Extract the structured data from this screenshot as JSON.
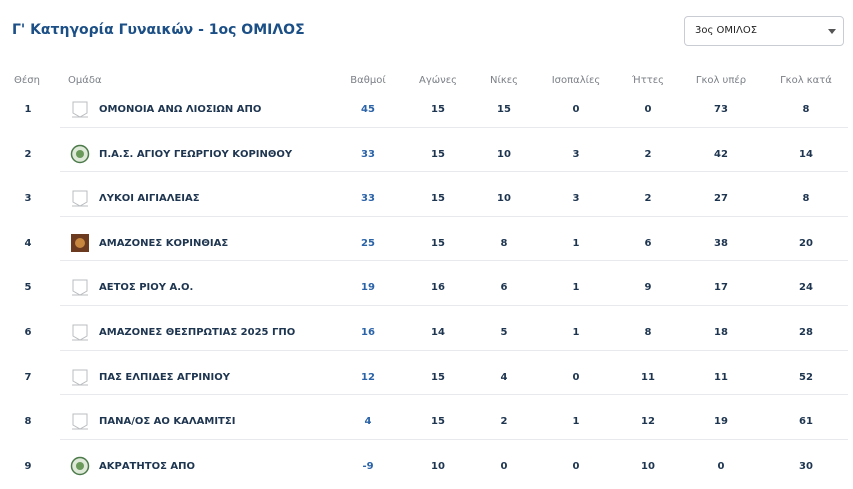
{
  "header": {
    "title": "Γ' Κατηγορία Γυναικών - 1ος ΟΜΙΛΟΣ",
    "dropdown": "3ος ΟΜΙΛΟΣ"
  },
  "table": {
    "columns": [
      "Θέση",
      "Ομάδα",
      "Βαθμοί",
      "Αγώνες",
      "Νίκες",
      "Ισοπαλίες",
      "Ήττες",
      "Γκολ υπέρ",
      "Γκολ κατά"
    ],
    "rows": [
      [
        1,
        "ΟΜΟΝΟΙΑ ΑΝΩ ΛΙΟΣΙΩΝ ΑΠΟ",
        45,
        15,
        15,
        0,
        0,
        73,
        8
      ],
      [
        2,
        "Π.Α.Σ. ΑΓΙΟΥ ΓΕΩΡΓΙΟΥ ΚΟΡΙΝΘΟΥ",
        33,
        15,
        10,
        3,
        2,
        42,
        14
      ],
      [
        3,
        "ΛΥΚΟΙ ΑΙΓΙΑΛΕΙΑΣ",
        33,
        15,
        10,
        3,
        2,
        27,
        8
      ],
      [
        4,
        "ΑΜΑΖΟΝΕΣ ΚΟΡΙΝΘΙΑΣ",
        25,
        15,
        8,
        1,
        6,
        38,
        20
      ],
      [
        5,
        "ΑΕΤΟΣ ΡΙΟΥ Α.Ο.",
        19,
        16,
        6,
        1,
        9,
        17,
        24
      ],
      [
        6,
        "ΑΜΑΖΟΝΕΣ ΘΕΣΠΡΩΤΙΑΣ 2025 ΓΠΟ",
        16,
        14,
        5,
        1,
        8,
        18,
        28
      ],
      [
        7,
        "ΠΑΣ ΕΛΠΙΔΕΣ ΑΓΡΙΝΙΟΥ",
        12,
        15,
        4,
        0,
        11,
        11,
        52
      ],
      [
        8,
        "ΠΑΝΑ/ΟΣ ΑΟ ΚΑΛΑΜΙΤΣΙ",
        4,
        15,
        2,
        1,
        12,
        19,
        61
      ],
      [
        9,
        "ΑΚΡΑΤΗΤΟΣ ΑΠΟ",
        -9,
        10,
        0,
        0,
        10,
        0,
        30
      ]
    ]
  }
}
